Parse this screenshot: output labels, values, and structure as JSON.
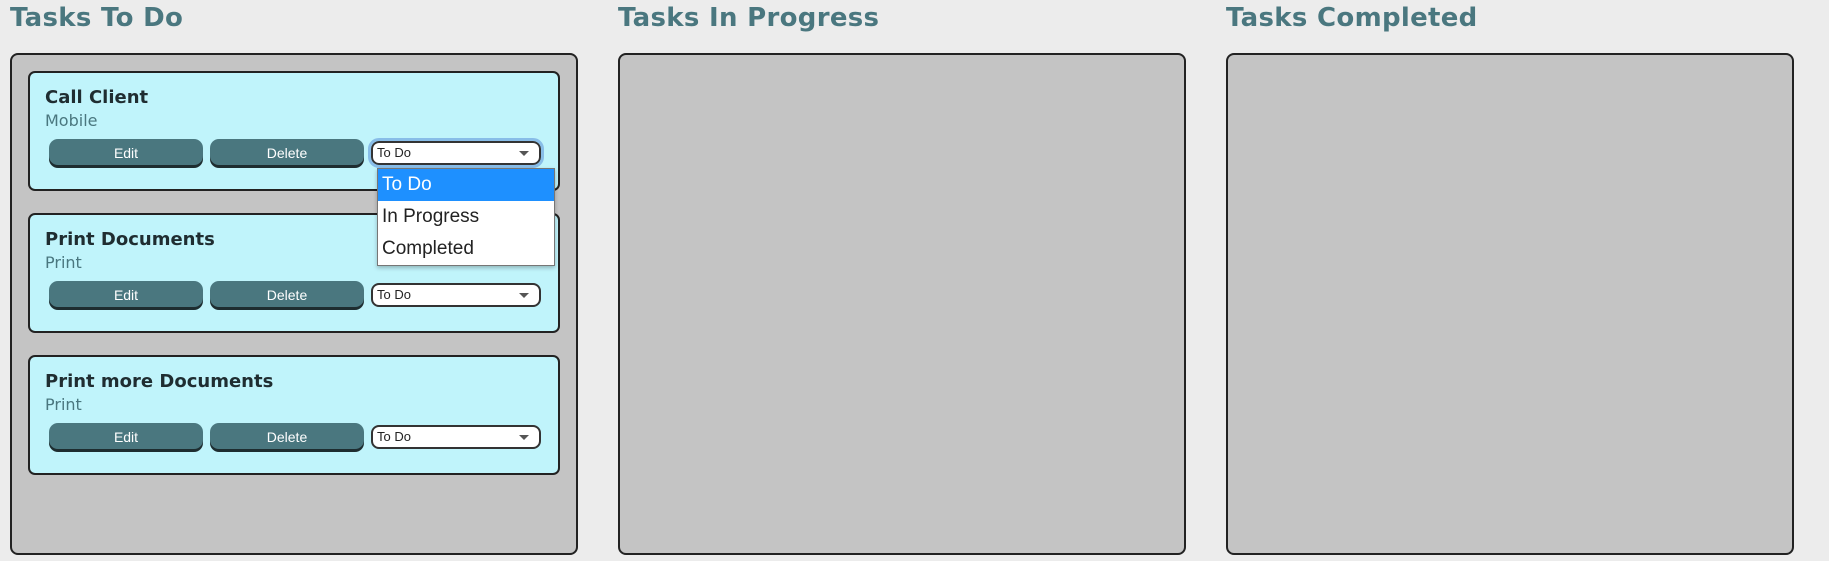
{
  "columns": [
    {
      "title": "Tasks To Do"
    },
    {
      "title": "Tasks In Progress"
    },
    {
      "title": "Tasks Completed"
    }
  ],
  "tasks": [
    {
      "title": "Call Client",
      "category": "Mobile",
      "edit_label": "Edit",
      "delete_label": "Delete",
      "status": "To Do"
    },
    {
      "title": "Print Documents",
      "category": "Print",
      "edit_label": "Edit",
      "delete_label": "Delete",
      "status": "To Do"
    },
    {
      "title": "Print more Documents",
      "category": "Print",
      "edit_label": "Edit",
      "delete_label": "Delete",
      "status": "To Do"
    }
  ],
  "status_dropdown": {
    "options": [
      "To Do",
      "In Progress",
      "Completed"
    ],
    "selected": "To Do"
  },
  "colors": {
    "page_background": "#ececec",
    "column_background": "#c4c4c4",
    "card_background": "#c0f4fb",
    "accent": "#4a777f",
    "dropdown_highlight": "#1e90ff"
  }
}
